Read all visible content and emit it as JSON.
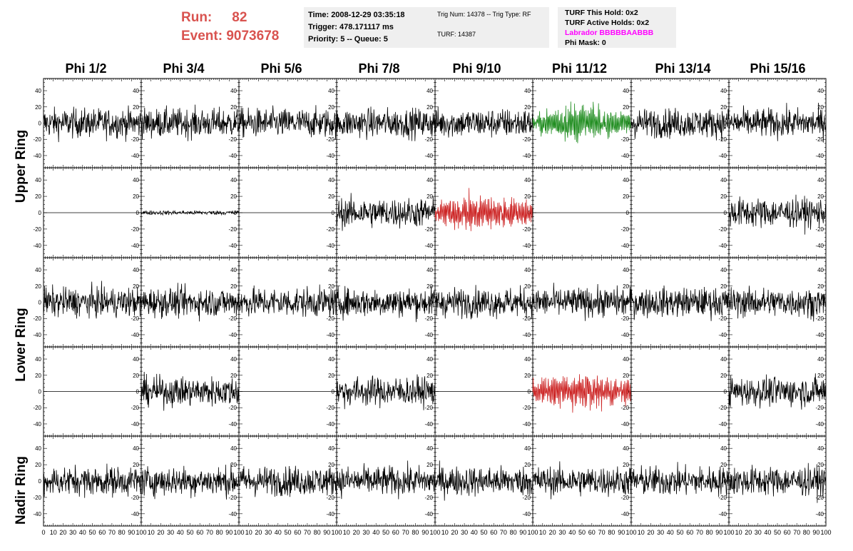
{
  "header": {
    "run_label": "Run:",
    "run_value": "82",
    "event_label": "Event:",
    "event_value": "9073678"
  },
  "info_box_1": {
    "time": "Time: 2008-12-29 03:35:18",
    "trigger": "Trigger: 478.171117 ms",
    "priority": "Priority: 5 -- Queue: 5"
  },
  "info_box_2": {
    "trig_num": "Trig Num: 14378 -- Trig Type: RF",
    "turf": "TURF: 14387"
  },
  "info_box_3": {
    "turf_this_hold": "TURF This Hold: 0x2",
    "turf_active_holds": "TURF Active Holds: 0x2",
    "labrador": "Labrador BBBBBAABBB",
    "phi_mask": "Phi Mask: 0"
  },
  "columns": [
    "Phi 1/2",
    "Phi 3/4",
    "Phi 5/6",
    "Phi 7/8",
    "Phi 9/10",
    "Phi 11/12",
    "Phi 13/14",
    "Phi 15/16"
  ],
  "rows": [
    "Upper Ring",
    "Lower Ring",
    "Nadir Ring"
  ],
  "colors": {
    "normal": "#000000",
    "triggered_upper": "#1e8c1e",
    "triggered_red": "#cc2222",
    "header_red": "#d9534f",
    "labrador": "#ff00ff"
  },
  "chart_data": {
    "type": "line",
    "description_grid": "5 rows x 8 columns of waveform panels",
    "x_ticks": [
      0,
      10,
      20,
      30,
      40,
      50,
      60,
      70,
      80,
      90,
      100
    ],
    "y_ticks": [
      -40,
      -20,
      0,
      20,
      40
    ],
    "ylim": [
      -55,
      55
    ],
    "xlim": [
      0,
      100
    ],
    "panels": [
      [
        "noise",
        "noise",
        "noise",
        "noise",
        "noise",
        "green",
        "noise",
        "noise"
      ],
      [
        "flat",
        "small",
        "flat",
        "noise",
        "red",
        "flat",
        "flat",
        "noise"
      ],
      [
        "noise",
        "noise",
        "noise",
        "noise",
        "noise",
        "noise",
        "noise",
        "noise"
      ],
      [
        "flat",
        "noise",
        "flat",
        "noise",
        "flat",
        "red",
        "flat",
        "noise"
      ],
      [
        "noise",
        "noise",
        "noise",
        "noise",
        "noise",
        "noise",
        "noise",
        "noise"
      ]
    ]
  }
}
